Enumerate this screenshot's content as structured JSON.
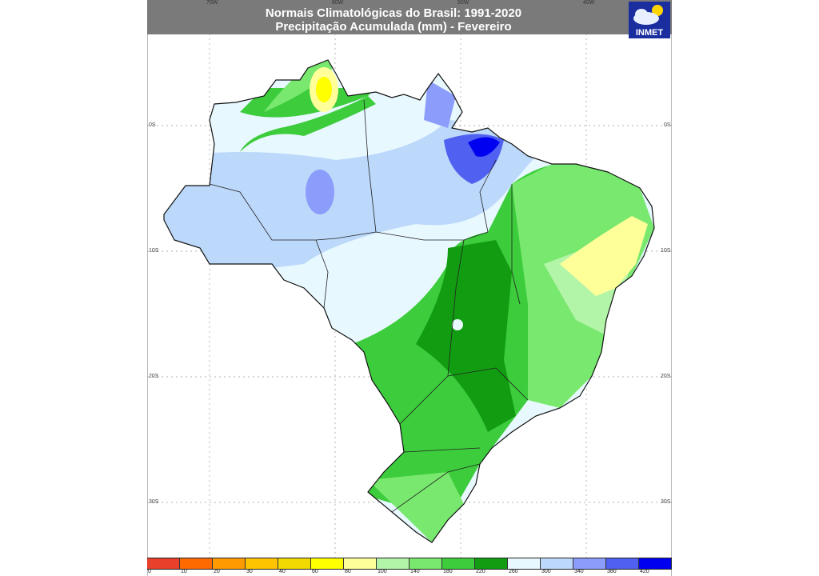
{
  "header": {
    "title_line1": "Normais Climatológicas do Brasil: 1991-2020",
    "title_line2": "Precipitação Acumulada (mm) - Fevereiro",
    "logo_text": "INMET"
  },
  "axes": {
    "longitude_labels": [
      "70W",
      "60W",
      "50W",
      "40W"
    ],
    "latitude_labels": [
      "0S",
      "10S",
      "20S",
      "30S"
    ]
  },
  "legend": {
    "unit": "mm",
    "ticks": [
      "0",
      "10",
      "20",
      "30",
      "40",
      "60",
      "80",
      "100",
      "140",
      "180",
      "220",
      "260",
      "300",
      "340",
      "380",
      "420"
    ],
    "colors": [
      "#e8402a",
      "#ff6a00",
      "#ff9a00",
      "#ffc400",
      "#f2d900",
      "#ffff00",
      "#ffff99",
      "#b3f5a8",
      "#78e86e",
      "#3ccc3c",
      "#129c12",
      "#e8f8ff",
      "#bcd8fa",
      "#8c9cfa",
      "#5060f0",
      "#0000f0"
    ]
  }
}
